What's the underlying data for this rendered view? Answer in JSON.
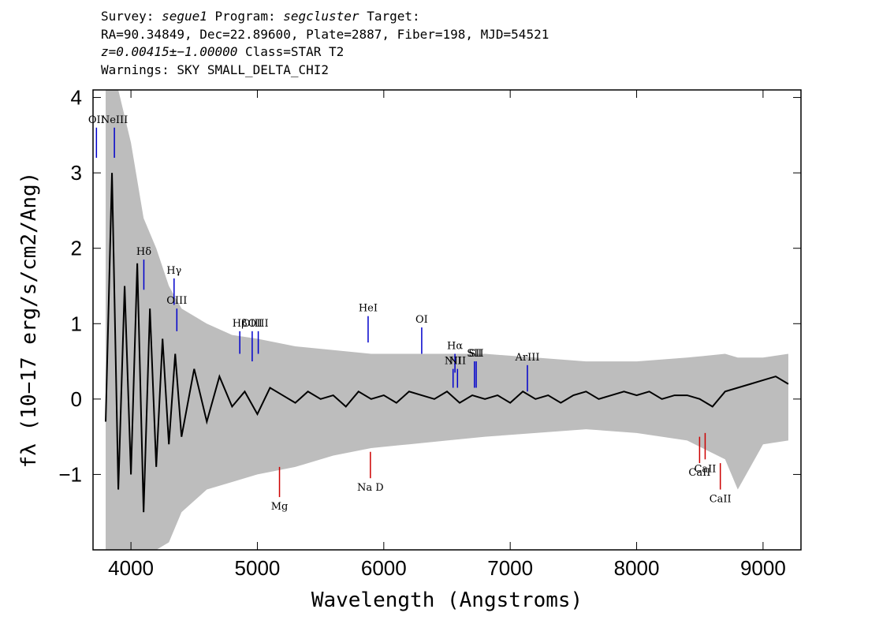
{
  "header": {
    "line1": {
      "survey_label": "Survey:",
      "survey": "segue1",
      "program_label": "Program:",
      "program": "segcluster",
      "target_label": "Target:"
    },
    "line2": "RA=90.34849, Dec=22.89600, Plate=2887, Fiber=198, MJD=54521",
    "line3": {
      "z": "z=0.00415±−1.00000",
      "class": "Class=STAR T2"
    },
    "line4": "Warnings: SKY SMALL_DELTA_CHI2"
  },
  "chart_data": {
    "type": "line",
    "xlabel": "Wavelength (Angstroms)",
    "ylabel": "fλ (10−17 erg/s/cm2/Ang)",
    "xlim": [
      3700,
      9300
    ],
    "ylim": [
      -2.0,
      4.1
    ],
    "x_ticks": [
      4000,
      5000,
      6000,
      7000,
      8000,
      9000
    ],
    "x_tick_labels": [
      "4000",
      "5000",
      "6000",
      "7000",
      "8000",
      "9000"
    ],
    "y_ticks": [
      -1,
      0,
      1,
      2,
      3,
      4
    ],
    "y_tick_labels": [
      "−1",
      "0",
      "1",
      "2",
      "3",
      "4"
    ],
    "grid": false,
    "series": [
      {
        "role": "error band (grey)",
        "color": "#bdbdbd",
        "x": [
          3800,
          3900,
          4000,
          4100,
          4200,
          4300,
          4400,
          4600,
          4800,
          5000,
          5300,
          5600,
          5900,
          6200,
          6500,
          6800,
          7200,
          7600,
          8000,
          8400,
          8700,
          8800,
          9000,
          9200
        ],
        "upper": [
          4.1,
          4.1,
          3.4,
          2.4,
          2.0,
          1.5,
          1.2,
          1.0,
          0.85,
          0.8,
          0.7,
          0.65,
          0.6,
          0.6,
          0.6,
          0.6,
          0.55,
          0.5,
          0.5,
          0.55,
          0.6,
          0.55,
          0.55,
          0.6
        ],
        "lower": [
          -2.0,
          -2.0,
          -2.0,
          -2.0,
          -2.0,
          -1.9,
          -1.5,
          -1.2,
          -1.1,
          -1.0,
          -0.9,
          -0.75,
          -0.65,
          -0.6,
          -0.55,
          -0.5,
          -0.45,
          -0.4,
          -0.45,
          -0.55,
          -0.8,
          -1.2,
          -0.6,
          -0.55
        ]
      },
      {
        "role": "flux (black)",
        "color": "#000000",
        "x": [
          3800,
          3850,
          3900,
          3950,
          4000,
          4050,
          4100,
          4150,
          4200,
          4250,
          4300,
          4350,
          4400,
          4500,
          4600,
          4700,
          4800,
          4900,
          5000,
          5100,
          5200,
          5300,
          5400,
          5500,
          5600,
          5700,
          5800,
          5900,
          6000,
          6100,
          6200,
          6300,
          6400,
          6500,
          6600,
          6700,
          6800,
          6900,
          7000,
          7100,
          7200,
          7300,
          7400,
          7500,
          7600,
          7700,
          7800,
          7900,
          8000,
          8100,
          8200,
          8300,
          8400,
          8500,
          8600,
          8700,
          8800,
          8900,
          9000,
          9100,
          9200
        ],
        "y": [
          -0.3,
          3.0,
          -1.2,
          1.5,
          -1.0,
          1.8,
          -1.5,
          1.2,
          -0.9,
          0.8,
          -0.6,
          0.6,
          -0.5,
          0.4,
          -0.3,
          0.3,
          -0.1,
          0.1,
          -0.2,
          0.15,
          0.05,
          -0.05,
          0.1,
          0.0,
          0.05,
          -0.1,
          0.1,
          0.0,
          0.05,
          -0.05,
          0.1,
          0.05,
          0.0,
          0.1,
          -0.05,
          0.05,
          0.0,
          0.05,
          -0.05,
          0.1,
          0.0,
          0.05,
          -0.05,
          0.05,
          0.1,
          0.0,
          0.05,
          0.1,
          0.05,
          0.1,
          0.0,
          0.05,
          0.05,
          0.0,
          -0.1,
          0.1,
          0.15,
          0.2,
          0.25,
          0.3,
          0.2
        ]
      }
    ],
    "annotations": {
      "emission": [
        {
          "label": "OII",
          "x": 3727,
          "ymin": 3.2,
          "ymax": 3.6
        },
        {
          "label": "NeIII",
          "x": 3869,
          "ymin": 3.2,
          "ymax": 3.6
        },
        {
          "label": "Hδ",
          "x": 4102,
          "ymin": 1.45,
          "ymax": 1.85
        },
        {
          "label": "Hγ",
          "x": 4341,
          "ymin": 1.25,
          "ymax": 1.6
        },
        {
          "label": "OIII",
          "x": 4363,
          "ymin": 0.9,
          "ymax": 1.2
        },
        {
          "label": "Hβ",
          "x": 4861,
          "ymin": 0.6,
          "ymax": 0.9
        },
        {
          "label": "OIII",
          "x": 4959,
          "ymin": 0.5,
          "ymax": 0.9
        },
        {
          "label": "OIII",
          "x": 5007,
          "ymin": 0.6,
          "ymax": 0.9
        },
        {
          "label": "HeI",
          "x": 5876,
          "ymin": 0.75,
          "ymax": 1.1
        },
        {
          "label": "OI",
          "x": 6300,
          "ymin": 0.6,
          "ymax": 0.95
        },
        {
          "label": "NII",
          "x": 6548,
          "ymin": 0.15,
          "ymax": 0.4
        },
        {
          "label": "Hα",
          "x": 6563,
          "ymin": 0.35,
          "ymax": 0.6
        },
        {
          "label": "NII",
          "x": 6583,
          "ymin": 0.15,
          "ymax": 0.4
        },
        {
          "label": "SII",
          "x": 6717,
          "ymin": 0.15,
          "ymax": 0.5
        },
        {
          "label": "SII",
          "x": 6731,
          "ymin": 0.15,
          "ymax": 0.5
        },
        {
          "label": "ArIII",
          "x": 7136,
          "ymin": 0.1,
          "ymax": 0.45
        }
      ],
      "absorption": [
        {
          "label": "Mg",
          "x": 5175,
          "ymin": -1.3,
          "ymax": -0.9
        },
        {
          "label": "Na D",
          "x": 5894,
          "ymin": -1.05,
          "ymax": -0.7
        },
        {
          "label": "CaII",
          "x": 8498,
          "ymin": -0.85,
          "ymax": -0.5
        },
        {
          "label": "CaII",
          "x": 8542,
          "ymin": -0.8,
          "ymax": -0.45
        },
        {
          "label": "CaII",
          "x": 8662,
          "ymin": -1.2,
          "ymax": -0.85
        }
      ],
      "emission_color": "#0000cc",
      "absorption_color": "#cc0000"
    }
  }
}
